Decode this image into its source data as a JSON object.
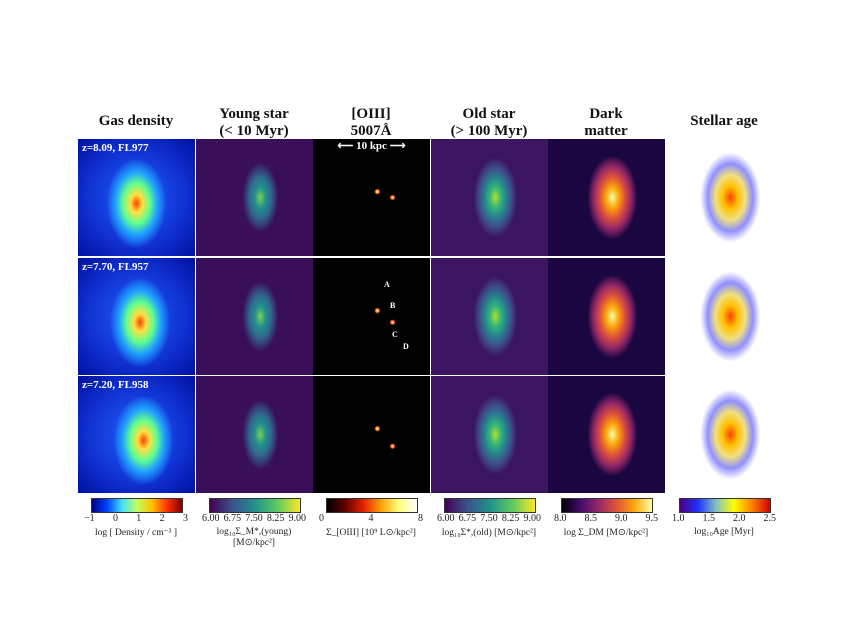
{
  "columns": [
    {
      "title_line1": "Gas density",
      "title_line2": "",
      "colorbar": {
        "ticks": [
          "−1",
          "0",
          "1",
          "2",
          "3"
        ],
        "label": "log [ Density / cm⁻³ ]",
        "colors": [
          "#00008b",
          "#0040ff",
          "#40e0ff",
          "#c0ff60",
          "#ffc000",
          "#ff3000",
          "#800000"
        ]
      }
    },
    {
      "title_line1": "Young star",
      "title_line2": "(< 10 Myr)",
      "colorbar": {
        "ticks": [
          "6.00",
          "6.75",
          "7.50",
          "8.25",
          "9.00"
        ],
        "label": "log₁₀Σ_M*,(young) [M⊙/kpc²]",
        "colors": [
          "#440154",
          "#3b528b",
          "#21918c",
          "#5ec962",
          "#fde725"
        ]
      }
    },
    {
      "title_line1": "[OIII]",
      "title_line2": "5007Å",
      "colorbar": {
        "ticks": [
          "0",
          "4",
          "8"
        ],
        "label": "Σ_[OIII] [10⁹ L⊙/kpc²]",
        "colors": [
          "#000000",
          "#600000",
          "#e02000",
          "#ffa000",
          "#ffff80",
          "#ffffff"
        ]
      }
    },
    {
      "title_line1": "Old star",
      "title_line2": "(> 100 Myr)",
      "colorbar": {
        "ticks": [
          "6.00",
          "6.75",
          "7.50",
          "8.25",
          "9.00"
        ],
        "label": "log₁₀Σ*,(old) [M⊙/kpc²]",
        "colors": [
          "#440154",
          "#3b528b",
          "#21918c",
          "#5ec962",
          "#fde725"
        ]
      }
    },
    {
      "title_line1": "Dark",
      "title_line2": "matter",
      "colorbar": {
        "ticks": [
          "8.0",
          "8.5",
          "9.0",
          "9.5"
        ],
        "label": "log Σ_DM [M⊙/kpc²]",
        "colors": [
          "#000004",
          "#420a68",
          "#932667",
          "#dd513a",
          "#fca50a",
          "#fcffa4"
        ]
      }
    },
    {
      "title_line1": "Stellar age",
      "title_line2": "",
      "colorbar": {
        "ticks": [
          "1.0",
          "1.5",
          "2.0",
          "2.5"
        ],
        "label": "log₁₀Age [Myr]",
        "colors": [
          "#4b0082",
          "#2030ff",
          "#80c0c0",
          "#ffff00",
          "#ff8000",
          "#d00000"
        ]
      }
    }
  ],
  "rows": [
    {
      "label": "z=8.09, FL977"
    },
    {
      "label": "z=7.70, FL957"
    },
    {
      "label": "z=7.20, FL958"
    }
  ],
  "scale_bar": "10 kpc",
  "annotations": [
    "A",
    "B",
    "C",
    "D"
  ]
}
